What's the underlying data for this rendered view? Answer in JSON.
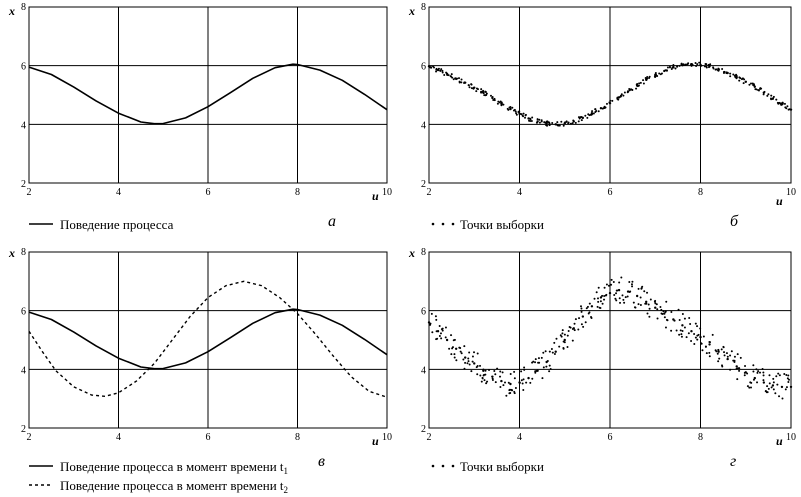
{
  "chart_data": [
    {
      "id": "a",
      "type": "line",
      "panel_label": "а",
      "xlabel": "u",
      "ylabel": "x",
      "xlim": [
        2,
        10
      ],
      "ylim": [
        2,
        8
      ],
      "xticks": [
        2,
        4,
        6,
        8,
        10
      ],
      "yticks": [
        2,
        4,
        6,
        8
      ],
      "grid": true,
      "legend_position": "bottom-left",
      "series": [
        {
          "name": "Поведение процесса",
          "style": "solid",
          "legend_sub": "",
          "x": [
            2.0,
            2.5,
            3.0,
            3.5,
            4.0,
            4.5,
            4.8,
            5.0,
            5.5,
            6.0,
            6.5,
            7.0,
            7.5,
            7.9,
            8.0,
            8.5,
            9.0,
            9.5,
            10.0
          ],
          "y": [
            5.95,
            5.7,
            5.27,
            4.8,
            4.38,
            4.08,
            4.02,
            4.03,
            4.22,
            4.6,
            5.08,
            5.57,
            5.93,
            6.05,
            6.04,
            5.85,
            5.5,
            5.02,
            4.5
          ]
        }
      ]
    },
    {
      "id": "b",
      "type": "scatter",
      "panel_label": "б",
      "xlabel": "u",
      "ylabel": "x",
      "xlim": [
        2,
        10
      ],
      "ylim": [
        2,
        8
      ],
      "xticks": [
        2,
        4,
        6,
        8,
        10
      ],
      "yticks": [
        2,
        4,
        6,
        8
      ],
      "grid": true,
      "legend_position": "bottom-left",
      "series": [
        {
          "name": "Точки выборки",
          "style": "dots",
          "legend_sub": "",
          "x": [
            2.0,
            2.2,
            2.4,
            2.6,
            2.8,
            3.0,
            3.2,
            3.4,
            3.6,
            3.8,
            4.0,
            4.2,
            4.4,
            4.6,
            4.8,
            5.0,
            5.2,
            5.4,
            5.6,
            5.8,
            6.0,
            6.2,
            6.4,
            6.6,
            6.8,
            7.0,
            7.2,
            7.4,
            7.6,
            7.8,
            8.0,
            8.2,
            8.4,
            8.6,
            8.8,
            9.0,
            9.2,
            9.4,
            9.6,
            9.8,
            10.0
          ],
          "y": [
            5.98,
            5.85,
            5.72,
            5.55,
            5.42,
            5.25,
            5.08,
            4.9,
            4.7,
            4.52,
            4.36,
            4.2,
            4.1,
            4.03,
            4.0,
            4.03,
            4.1,
            4.22,
            4.38,
            4.55,
            4.72,
            4.92,
            5.12,
            5.32,
            5.52,
            5.68,
            5.82,
            5.95,
            6.02,
            6.05,
            6.03,
            5.98,
            5.88,
            5.75,
            5.6,
            5.45,
            5.28,
            5.08,
            4.88,
            4.68,
            4.5
          ]
        }
      ]
    },
    {
      "id": "v",
      "type": "line",
      "panel_label": "в",
      "xlabel": "u",
      "ylabel": "x",
      "xlim": [
        2,
        10
      ],
      "ylim": [
        2,
        8
      ],
      "xticks": [
        2,
        4,
        6,
        8,
        10
      ],
      "yticks": [
        2,
        4,
        6,
        8
      ],
      "grid": true,
      "legend_position": "bottom-left",
      "series": [
        {
          "name": "Поведение процесса в момент времени t",
          "style": "solid",
          "legend_sub": "1",
          "x": [
            2.0,
            2.5,
            3.0,
            3.5,
            4.0,
            4.5,
            4.8,
            5.0,
            5.5,
            6.0,
            6.5,
            7.0,
            7.5,
            7.9,
            8.0,
            8.5,
            9.0,
            9.5,
            10.0
          ],
          "y": [
            5.95,
            5.7,
            5.27,
            4.8,
            4.38,
            4.08,
            4.02,
            4.03,
            4.22,
            4.6,
            5.08,
            5.57,
            5.93,
            6.05,
            6.04,
            5.85,
            5.5,
            5.02,
            4.5
          ]
        },
        {
          "name": "Поведение процесса в момент времени t",
          "style": "dashed",
          "legend_sub": "2",
          "x": [
            2.0,
            2.3,
            2.6,
            3.0,
            3.4,
            3.7,
            4.0,
            4.4,
            4.8,
            5.2,
            5.6,
            6.0,
            6.4,
            6.8,
            7.2,
            7.6,
            8.0,
            8.4,
            8.8,
            9.2,
            9.6,
            10.0
          ],
          "y": [
            5.3,
            4.6,
            3.95,
            3.4,
            3.12,
            3.08,
            3.2,
            3.6,
            4.2,
            5.0,
            5.8,
            6.45,
            6.85,
            7.0,
            6.85,
            6.45,
            5.9,
            5.2,
            4.45,
            3.75,
            3.25,
            3.05
          ]
        }
      ]
    },
    {
      "id": "g",
      "type": "scatter",
      "panel_label": "г",
      "xlabel": "u",
      "ylabel": "x",
      "xlim": [
        2,
        10
      ],
      "ylim": [
        2,
        8
      ],
      "xticks": [
        2,
        4,
        6,
        8,
        10
      ],
      "yticks": [
        2,
        4,
        6,
        8
      ],
      "grid": true,
      "legend_position": "bottom-left",
      "series": [
        {
          "name": "Точки выборки",
          "style": "dots",
          "legend_sub": "",
          "x": [
            2.0,
            2.2,
            2.4,
            2.6,
            2.8,
            3.0,
            3.2,
            3.4,
            3.6,
            3.8,
            4.0,
            4.2,
            4.4,
            4.6,
            4.8,
            5.0,
            5.2,
            5.4,
            5.6,
            5.8,
            6.0,
            6.2,
            6.4,
            6.6,
            6.8,
            7.0,
            7.2,
            7.4,
            7.6,
            7.8,
            8.0,
            8.2,
            8.4,
            8.6,
            8.8,
            9.0,
            9.2,
            9.4,
            9.6,
            9.8,
            10.0
          ],
          "y": [
            5.6,
            5.3,
            5.0,
            4.7,
            4.4,
            4.2,
            3.95,
            3.75,
            3.6,
            3.5,
            3.55,
            3.7,
            3.95,
            4.25,
            4.6,
            5.0,
            5.4,
            5.8,
            6.15,
            6.45,
            6.6,
            6.7,
            6.65,
            6.5,
            6.3,
            6.1,
            5.9,
            5.7,
            5.5,
            5.3,
            5.1,
            4.85,
            4.6,
            4.35,
            4.1,
            3.9,
            3.7,
            3.55,
            3.45,
            3.4,
            3.4
          ]
        }
      ]
    }
  ]
}
